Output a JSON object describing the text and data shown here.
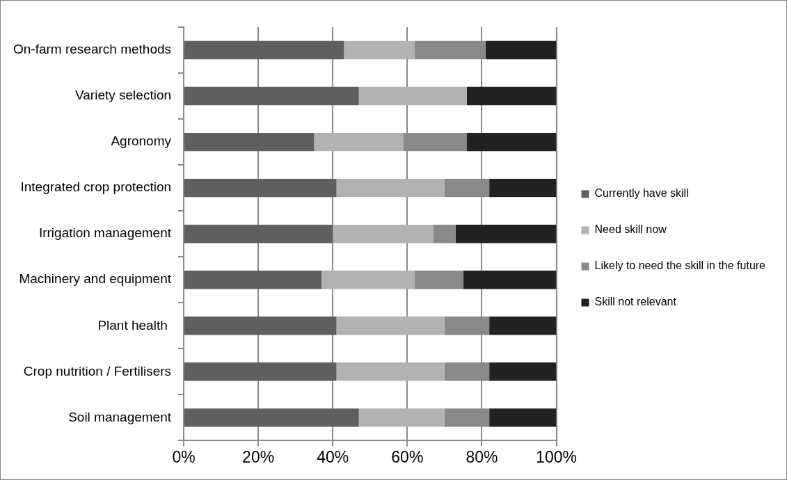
{
  "chart_data": {
    "type": "bar",
    "orientation": "horizontal",
    "stacked": true,
    "categories": [
      "On-farm research methods",
      "Variety selection",
      "Agronomy",
      "Integrated crop protection",
      "Irrigation management",
      "Machinery and equipment",
      "Plant health ",
      "Crop nutrition / Fertilisers",
      "Soil management"
    ],
    "series": [
      {
        "name": "Currently have skill",
        "color": "#5f5f5f",
        "values": [
          43,
          47,
          35,
          41,
          40,
          37,
          41,
          41,
          47
        ]
      },
      {
        "name": "Need skill now",
        "color": "#b2b2b2",
        "values": [
          19,
          29,
          24,
          29,
          27,
          25,
          29,
          29,
          23
        ]
      },
      {
        "name": "Likely to need the skill in the future",
        "color": "#898989",
        "values": [
          19,
          0,
          17,
          12,
          6,
          13,
          12,
          12,
          12
        ]
      },
      {
        "name": "Skill not relevant",
        "color": "#222222",
        "values": [
          19,
          24,
          24,
          18,
          27,
          25,
          18,
          18,
          18
        ]
      }
    ],
    "xlim": [
      0,
      100
    ],
    "xticks": [
      {
        "value": 0,
        "label": "0%"
      },
      {
        "value": 20,
        "label": "20%"
      },
      {
        "value": 40,
        "label": "40%"
      },
      {
        "value": 60,
        "label": "60%"
      },
      {
        "value": 80,
        "label": "80%"
      },
      {
        "value": 100,
        "label": "100%"
      }
    ],
    "grid": "x",
    "legend": "right"
  }
}
